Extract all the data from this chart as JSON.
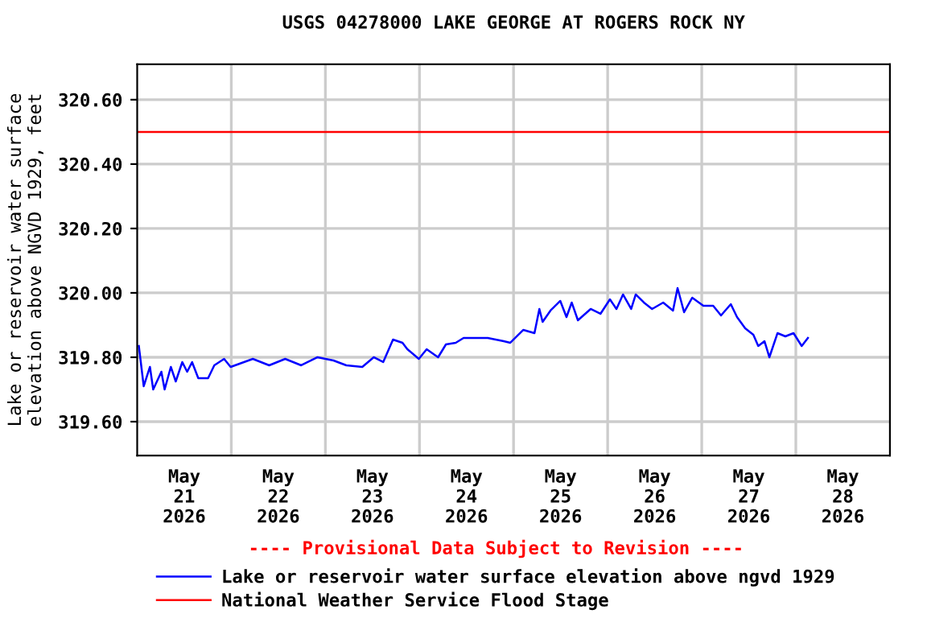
{
  "chart_data": {
    "type": "line",
    "title": "USGS 04278000 LAKE GEORGE AT ROGERS ROCK NY",
    "ylabel": "Lake or reservoir water surface\nelevation above NGVD 1929, feet",
    "annotations": [
      "---- Provisional Data Subject to Revision ----"
    ],
    "series": [
      {
        "name": "Lake or reservoir water surface elevation above ngvd 1929",
        "color": "#0000ff",
        "x": [
          "2026-05-21T00:25",
          "2026-05-21T01:40",
          "2026-05-21T03:15",
          "2026-05-21T04:05",
          "2026-05-21T06:10",
          "2026-05-21T07:00",
          "2026-05-21T08:35",
          "2026-05-21T09:50",
          "2026-05-21T11:30",
          "2026-05-21T12:45",
          "2026-05-21T14:00",
          "2026-05-21T15:35",
          "2026-05-21T18:05",
          "2026-05-21T19:40",
          "2026-05-21T22:10",
          "2026-05-21T23:50",
          "2026-05-22T05:30",
          "2026-05-22T09:40",
          "2026-05-22T13:45",
          "2026-05-22T17:50",
          "2026-05-22T22:00",
          "2026-05-23T02:05",
          "2026-05-23T05:20",
          "2026-05-23T09:25",
          "2026-05-23T12:20",
          "2026-05-23T14:45",
          "2026-05-23T17:15",
          "2026-05-23T19:40",
          "2026-05-23T20:55",
          "2026-05-23T23:50",
          "2026-05-24T01:50",
          "2026-05-24T04:45",
          "2026-05-24T06:45",
          "2026-05-24T09:15",
          "2026-05-24T11:15",
          "2026-05-24T15:00",
          "2026-05-24T17:25",
          "2026-05-24T21:30",
          "2026-05-24T23:10",
          "2026-05-25T00:25",
          "2026-05-25T02:30",
          "2026-05-25T05:20",
          "2026-05-25T06:35",
          "2026-05-25T07:25",
          "2026-05-25T09:25",
          "2026-05-25T11:55",
          "2026-05-25T13:30",
          "2026-05-25T14:50",
          "2026-05-25T16:25",
          "2026-05-25T19:40",
          "2026-05-25T22:10",
          "2026-05-26T00:35",
          "2026-05-26T02:15",
          "2026-05-26T03:55",
          "2026-05-26T06:00",
          "2026-05-26T07:10",
          "2026-05-26T09:15",
          "2026-05-26T11:20",
          "2026-05-26T14:10",
          "2026-05-26T16:40",
          "2026-05-26T17:50",
          "2026-05-26T19:30",
          "2026-05-26T21:35",
          "2026-05-27T00:25",
          "2026-05-27T02:55",
          "2026-05-27T04:55",
          "2026-05-27T07:25",
          "2026-05-27T09:00",
          "2026-05-27T11:05",
          "2026-05-27T13:10",
          "2026-05-27T14:25",
          "2026-05-27T16:00",
          "2026-05-27T17:15",
          "2026-05-27T19:20",
          "2026-05-27T21:20",
          "2026-05-27T23:25",
          "2026-05-28T01:30",
          "2026-05-28T03:05"
        ],
        "values": [
          319.835,
          319.71,
          319.77,
          319.7,
          319.755,
          319.7,
          319.77,
          319.725,
          319.785,
          319.755,
          319.785,
          319.735,
          319.735,
          319.775,
          319.795,
          319.77,
          319.795,
          319.775,
          319.795,
          319.775,
          319.8,
          319.79,
          319.775,
          319.77,
          319.8,
          319.785,
          319.855,
          319.845,
          319.825,
          319.795,
          319.825,
          319.8,
          319.84,
          319.845,
          319.86,
          319.86,
          319.86,
          319.85,
          319.845,
          319.86,
          319.885,
          319.875,
          319.95,
          319.91,
          319.945,
          319.975,
          319.925,
          319.97,
          319.915,
          319.95,
          319.935,
          319.98,
          319.95,
          319.995,
          319.95,
          319.995,
          319.97,
          319.95,
          319.97,
          319.945,
          320.015,
          319.94,
          319.985,
          319.96,
          319.96,
          319.93,
          319.965,
          319.925,
          319.89,
          319.87,
          319.835,
          319.85,
          319.8,
          319.875,
          319.865,
          319.875,
          319.835,
          319.86
        ]
      }
    ],
    "ref_lines": [
      {
        "axis": "y",
        "value": 320.5,
        "label": "National Weather Service Flood Stage",
        "color": "#ff0000"
      }
    ],
    "xlim": [
      "2026-05-21T00:00",
      "2026-05-29T00:00"
    ],
    "xticks": [
      {
        "value": "2026-05-21T12:00",
        "label": "May\n21\n2026"
      },
      {
        "value": "2026-05-22T12:00",
        "label": "May\n22\n2026"
      },
      {
        "value": "2026-05-23T12:00",
        "label": "May\n23\n2026"
      },
      {
        "value": "2026-05-24T12:00",
        "label": "May\n24\n2026"
      },
      {
        "value": "2026-05-25T12:00",
        "label": "May\n25\n2026"
      },
      {
        "value": "2026-05-26T12:00",
        "label": "May\n26\n2026"
      },
      {
        "value": "2026-05-27T12:00",
        "label": "May\n27\n2026"
      },
      {
        "value": "2026-05-28T12:00",
        "label": "May\n28\n2026"
      },
      {
        "value": "2026-05-22",
        "label": null
      },
      {
        "value": "2026-05-23",
        "label": null
      },
      {
        "value": "2026-05-24",
        "label": null
      },
      {
        "value": "2026-05-25",
        "label": null
      },
      {
        "value": "2026-05-26",
        "label": null
      },
      {
        "value": "2026-05-27",
        "label": null
      },
      {
        "value": "2026-05-28",
        "label": null
      }
    ],
    "ylim": [
      319.495,
      320.71
    ],
    "yticks": [
      {
        "value": 319.6,
        "label": "319.60"
      },
      {
        "value": 319.8,
        "label": "319.80"
      },
      {
        "value": 320.0,
        "label": "320.00"
      },
      {
        "value": 320.2,
        "label": "320.20"
      },
      {
        "value": 320.4,
        "label": "320.40"
      },
      {
        "value": 320.6,
        "label": "320.60"
      }
    ],
    "grid": true,
    "legend": "bottom"
  }
}
